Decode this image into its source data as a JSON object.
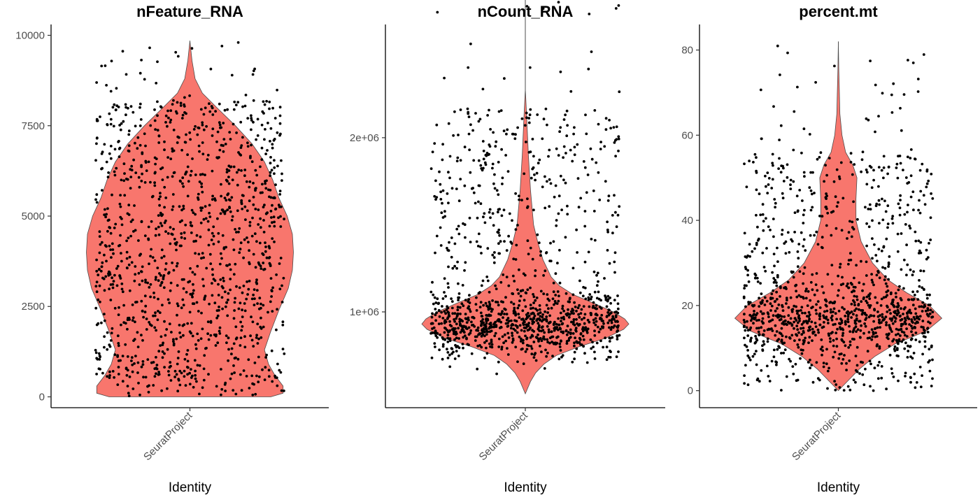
{
  "colors": {
    "violin_fill": "#F8766D",
    "point": "#000000",
    "axis": "#000000"
  },
  "chart_data": [
    {
      "type": "violin",
      "title": "nFeature_RNA",
      "xlabel": "Identity",
      "categories": [
        "SeuratProject"
      ],
      "ylim": [
        -300,
        10300
      ],
      "yticks": [
        0,
        2500,
        5000,
        7500,
        10000
      ],
      "ytick_labels": [
        "0",
        "2500",
        "5000",
        "7500",
        "10000"
      ],
      "data_range": [
        0,
        9850
      ],
      "density_profile": [
        [
          0,
          0.78
        ],
        [
          100,
          0.9
        ],
        [
          300,
          0.9
        ],
        [
          600,
          0.82
        ],
        [
          900,
          0.76
        ],
        [
          1300,
          0.72
        ],
        [
          1800,
          0.78
        ],
        [
          2400,
          0.86
        ],
        [
          3000,
          0.95
        ],
        [
          3500,
          0.99
        ],
        [
          4000,
          1.0
        ],
        [
          4500,
          0.99
        ],
        [
          5000,
          0.94
        ],
        [
          5500,
          0.86
        ],
        [
          6000,
          0.8
        ],
        [
          6500,
          0.72
        ],
        [
          7000,
          0.6
        ],
        [
          7500,
          0.44
        ],
        [
          8000,
          0.26
        ],
        [
          8400,
          0.12
        ],
        [
          8800,
          0.05
        ],
        [
          9300,
          0.02
        ],
        [
          9850,
          0.0
        ]
      ],
      "point_count": 1200,
      "point_distribution": "uniform"
    },
    {
      "type": "violin",
      "title": "nCount_RNA",
      "xlabel": "Identity",
      "categories": [
        "SeuratProject"
      ],
      "ylim": [
        450000,
        2650000
      ],
      "yticks": [
        1000000,
        2000000
      ],
      "ytick_labels": [
        "1e+06",
        "2e+06"
      ],
      "data_range": [
        530000,
        2830000
      ],
      "density_profile": [
        [
          530000,
          0.0
        ],
        [
          600000,
          0.05
        ],
        [
          650000,
          0.1
        ],
        [
          700000,
          0.18
        ],
        [
          750000,
          0.3
        ],
        [
          800000,
          0.52
        ],
        [
          850000,
          0.78
        ],
        [
          900000,
          0.95
        ],
        [
          930000,
          1.0
        ],
        [
          960000,
          0.96
        ],
        [
          1000000,
          0.85
        ],
        [
          1050000,
          0.66
        ],
        [
          1100000,
          0.46
        ],
        [
          1150000,
          0.33
        ],
        [
          1200000,
          0.25
        ],
        [
          1300000,
          0.17
        ],
        [
          1400000,
          0.12
        ],
        [
          1500000,
          0.08
        ],
        [
          1700000,
          0.05
        ],
        [
          1900000,
          0.03
        ],
        [
          2100000,
          0.015
        ],
        [
          2280000,
          0.0
        ],
        [
          2830000,
          0.0
        ]
      ],
      "point_count": 1200,
      "point_distribution": "clustered_low_spread_high"
    },
    {
      "type": "violin",
      "title": "percent.mt",
      "xlabel": "Identity",
      "categories": [
        "SeuratProject"
      ],
      "ylim": [
        -4,
        86
      ],
      "yticks": [
        0,
        20,
        40,
        60,
        80
      ],
      "ytick_labels": [
        "0",
        "20",
        "40",
        "60",
        "80"
      ],
      "data_range": [
        0,
        82
      ],
      "density_profile": [
        [
          0,
          0.0
        ],
        [
          2,
          0.08
        ],
        [
          5,
          0.2
        ],
        [
          8,
          0.35
        ],
        [
          11,
          0.55
        ],
        [
          14,
          0.85
        ],
        [
          17,
          1.0
        ],
        [
          20,
          0.88
        ],
        [
          23,
          0.66
        ],
        [
          26,
          0.48
        ],
        [
          30,
          0.33
        ],
        [
          35,
          0.22
        ],
        [
          40,
          0.17
        ],
        [
          45,
          0.17
        ],
        [
          50,
          0.18
        ],
        [
          53,
          0.14
        ],
        [
          56,
          0.07
        ],
        [
          60,
          0.035
        ],
        [
          65,
          0.015
        ],
        [
          70,
          0.01
        ],
        [
          75,
          0.005
        ],
        [
          82,
          0.0
        ]
      ],
      "point_count": 1200,
      "point_distribution": "clustered_mid_spread_high"
    }
  ]
}
